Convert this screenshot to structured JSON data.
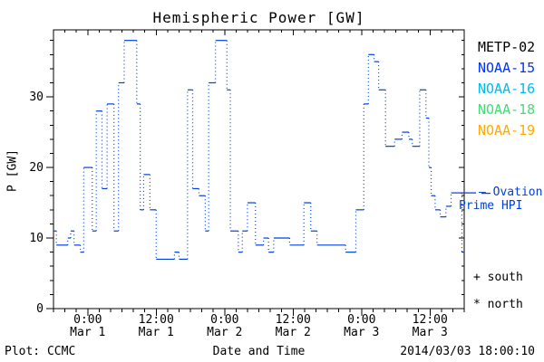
{
  "title": "Hemispheric Power [GW]",
  "y_axis": {
    "label": "P [GW]",
    "major_tick_labels": [
      "0",
      "10",
      "20",
      "30"
    ]
  },
  "x_axis": {
    "major_ticks": [
      {
        "t": 6,
        "time": "0:00",
        "date": "Mar 1"
      },
      {
        "t": 18,
        "time": "12:00",
        "date": "Mar 1"
      },
      {
        "t": 30,
        "time": "0:00",
        "date": "Mar 2"
      },
      {
        "t": 42,
        "time": "12:00",
        "date": "Mar 2"
      },
      {
        "t": 54,
        "time": "0:00",
        "date": "Mar 3"
      },
      {
        "t": 66,
        "time": "12:00",
        "date": "Mar 3"
      }
    ]
  },
  "legend": {
    "satellites": [
      {
        "label": "METP-02",
        "color": "#000000"
      },
      {
        "label": "NOAA-15",
        "color": "#0033FF"
      },
      {
        "label": "NOAA-16",
        "color": "#00BBEE"
      },
      {
        "label": "NOAA-18",
        "color": "#44DD77"
      },
      {
        "label": "NOAA-19",
        "color": "#FFAA00"
      }
    ]
  },
  "annotations": {
    "ovation_line1": "— Ovation",
    "ovation_line2": "Prime HPI",
    "south": "+ south",
    "north": "* north"
  },
  "footer": {
    "left": "Plot: CCMC",
    "center": "Date and Time",
    "right": "2014/03/03 18:00:10"
  },
  "colors": {
    "line": "#0040DD",
    "axis": "#000000",
    "background": "#FFFFFF"
  },
  "chart_data": {
    "type": "line",
    "subtype": "steps-post, solid horizontals with dotted vertical risers",
    "title": "Hemispheric Power [GW]",
    "xlabel": "Date and Time",
    "ylabel": "P [GW]",
    "x_unit": "hours since 2014-02-28 18:00 UT",
    "xlim": [
      0,
      72
    ],
    "ylim": [
      0,
      39.5
    ],
    "y_major_ticks": [
      0,
      10,
      20,
      30
    ],
    "y_minor_step": 2,
    "x_minor_step_hours": 2,
    "grid": false,
    "legend_position": "right-outside",
    "series": [
      {
        "name": "Ovation Prime HPI",
        "color": "#0040DD",
        "end_t": 72,
        "steps": [
          [
            0,
            11
          ],
          [
            0.5,
            9
          ],
          [
            2.5,
            10
          ],
          [
            3,
            11
          ],
          [
            3.6,
            9
          ],
          [
            4.7,
            8
          ],
          [
            5.3,
            20
          ],
          [
            6.8,
            11
          ],
          [
            7.5,
            28
          ],
          [
            8.5,
            17
          ],
          [
            9.4,
            29
          ],
          [
            10.6,
            11
          ],
          [
            11.4,
            32
          ],
          [
            12.4,
            38
          ],
          [
            14.6,
            29
          ],
          [
            15.2,
            14
          ],
          [
            15.8,
            19
          ],
          [
            16.9,
            14
          ],
          [
            18,
            7
          ],
          [
            21.2,
            8
          ],
          [
            22,
            7
          ],
          [
            23.5,
            31
          ],
          [
            24.4,
            17
          ],
          [
            25.5,
            16
          ],
          [
            26.6,
            11
          ],
          [
            27.2,
            32
          ],
          [
            28.4,
            38
          ],
          [
            30.4,
            31
          ],
          [
            31,
            11
          ],
          [
            32.4,
            8
          ],
          [
            33.1,
            11
          ],
          [
            34,
            15
          ],
          [
            35.4,
            9
          ],
          [
            36.8,
            10
          ],
          [
            37.7,
            8
          ],
          [
            38.6,
            10
          ],
          [
            41.4,
            9
          ],
          [
            43.9,
            15
          ],
          [
            45.1,
            11
          ],
          [
            46.2,
            9
          ],
          [
            51.2,
            8
          ],
          [
            53,
            14
          ],
          [
            54.4,
            29
          ],
          [
            55.2,
            36
          ],
          [
            56.2,
            35
          ],
          [
            57,
            31
          ],
          [
            58.2,
            23
          ],
          [
            59.8,
            24
          ],
          [
            61.1,
            25
          ],
          [
            62.3,
            24
          ],
          [
            62.9,
            23
          ],
          [
            64.2,
            31
          ],
          [
            65.3,
            27
          ],
          [
            65.8,
            20
          ],
          [
            66.2,
            16
          ],
          [
            66.9,
            14
          ],
          [
            67.8,
            13
          ],
          [
            68.8,
            14.5
          ],
          [
            69.7,
            16.4
          ],
          [
            71.6,
            8
          ]
        ]
      }
    ]
  }
}
